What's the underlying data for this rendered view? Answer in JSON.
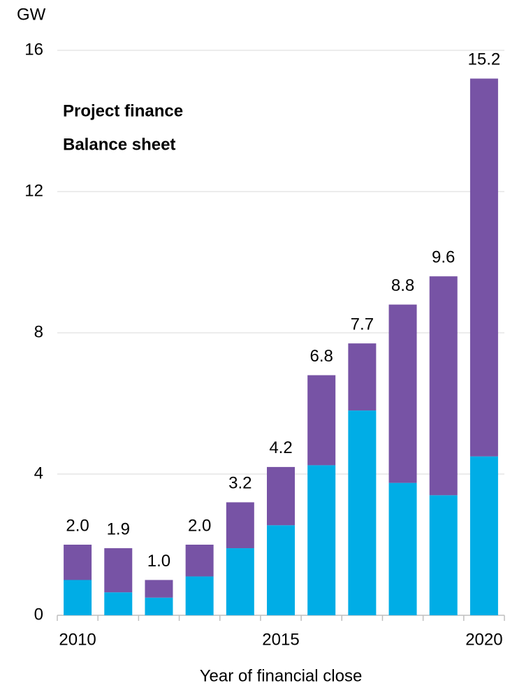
{
  "chart_data": {
    "type": "stacked_bar",
    "y_axis_label": "GW",
    "x_axis_label": "Year of financial close",
    "categories": [
      "2010",
      null,
      null,
      null,
      null,
      "2015",
      null,
      null,
      null,
      null,
      "2020"
    ],
    "series": [
      {
        "name": "Balance sheet",
        "color": "#00ade6",
        "values": [
          1.0,
          0.65,
          0.5,
          1.1,
          1.9,
          2.55,
          4.25,
          5.8,
          3.75,
          3.4,
          4.5
        ]
      },
      {
        "name": "Project finance",
        "color": "#7753a5",
        "values": [
          1.0,
          1.25,
          0.5,
          0.9,
          1.3,
          1.65,
          2.55,
          1.9,
          5.05,
          6.2,
          10.7
        ]
      }
    ],
    "totals": [
      2.0,
      1.9,
      1.0,
      2.0,
      3.2,
      4.2,
      6.8,
      7.7,
      8.8,
      9.6,
      15.2
    ],
    "total_labels": [
      "2.0",
      "1.9",
      "1.0",
      "2.0",
      "3.2",
      "4.2",
      "6.8",
      "7.7",
      "8.8",
      "9.6",
      "15.2"
    ],
    "ylim": [
      0,
      16
    ],
    "yticks": [
      0,
      4,
      8,
      12,
      16
    ],
    "grid": true
  }
}
